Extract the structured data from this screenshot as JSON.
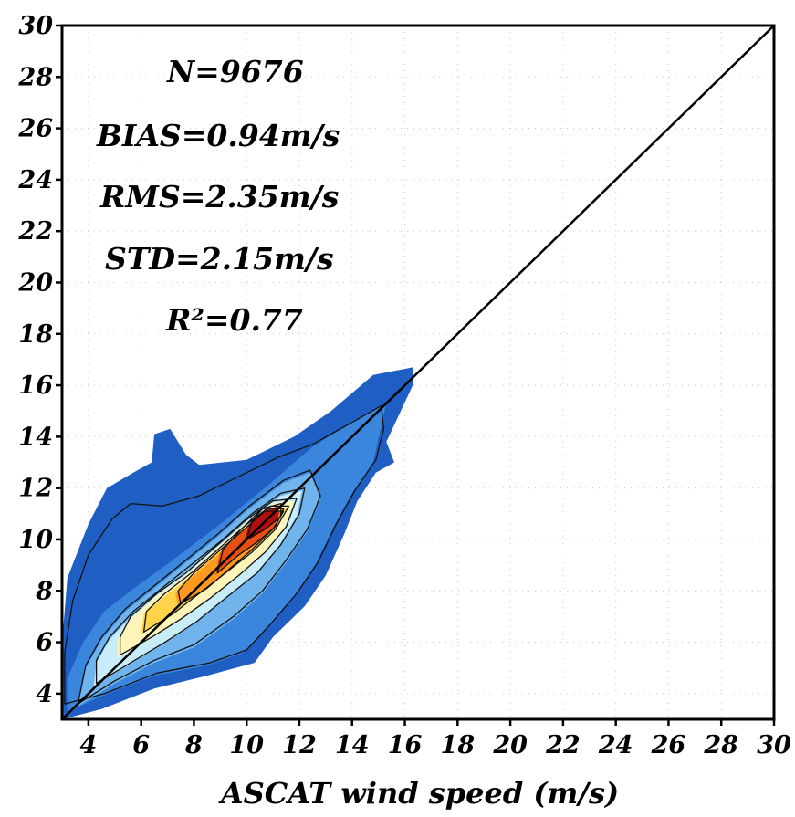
{
  "chart_data": {
    "type": "heatmap",
    "subtype": "density-scatter (filled contours)",
    "title": "",
    "xlabel": "ASCAT wind speed (m/s)",
    "ylabel": "",
    "xlim": [
      3,
      30
    ],
    "ylim": [
      3,
      30
    ],
    "x_ticks": [
      "4",
      "6",
      "8",
      "10",
      "12",
      "14",
      "16",
      "18",
      "20",
      "22",
      "24",
      "26",
      "28",
      "30"
    ],
    "y_ticks": [
      "4",
      "6",
      "8",
      "10",
      "12",
      "14",
      "16",
      "18",
      "20",
      "22",
      "24",
      "26",
      "28",
      "30"
    ],
    "grid": true,
    "reference_line": {
      "type": "1:1",
      "from": [
        3,
        3
      ],
      "to": [
        30,
        30
      ]
    },
    "stats": {
      "n": "N=9676",
      "bias": "BIAS=0.94m/s",
      "rms": "RMS=2.35m/s",
      "std": "STD=2.15m/s",
      "r2": "R²=0.77"
    },
    "colormap": [
      "#1f5fc4",
      "#3a86dc",
      "#6fb4ec",
      "#c9ecf9",
      "#fff5b8",
      "#ffd34a",
      "#ff9a1f",
      "#e84f12",
      "#b30f0f"
    ],
    "density_levels": [
      {
        "level": 0,
        "polygon": [
          [
            3.0,
            3.0
          ],
          [
            4.5,
            3.4
          ],
          [
            6.5,
            4.2
          ],
          [
            8.5,
            4.7
          ],
          [
            10.3,
            5.2
          ],
          [
            11.0,
            6.2
          ],
          [
            12.2,
            7.4
          ],
          [
            13.0,
            8.6
          ],
          [
            13.7,
            10.2
          ],
          [
            14.2,
            11.5
          ],
          [
            14.9,
            12.6
          ],
          [
            15.6,
            13.0
          ],
          [
            15.3,
            13.8
          ],
          [
            15.8,
            14.9
          ],
          [
            16.3,
            16.0
          ],
          [
            16.3,
            16.7
          ],
          [
            14.8,
            16.4
          ],
          [
            13.2,
            15.0
          ],
          [
            11.8,
            14.0
          ],
          [
            10.0,
            13.1
          ],
          [
            8.2,
            12.9
          ],
          [
            7.7,
            13.3
          ],
          [
            7.1,
            14.3
          ],
          [
            6.5,
            14.1
          ],
          [
            6.4,
            13.0
          ],
          [
            5.7,
            12.6
          ],
          [
            4.7,
            12.0
          ],
          [
            4.0,
            10.6
          ],
          [
            3.2,
            8.5
          ],
          [
            3.0,
            6.0
          ]
        ]
      },
      {
        "level": 1,
        "polygon": [
          [
            3.2,
            3.3
          ],
          [
            4.5,
            3.9
          ],
          [
            6.5,
            4.7
          ],
          [
            8.5,
            5.1
          ],
          [
            9.9,
            5.6
          ],
          [
            10.8,
            6.6
          ],
          [
            11.8,
            7.8
          ],
          [
            12.6,
            9.0
          ],
          [
            13.3,
            10.5
          ],
          [
            14.0,
            11.8
          ],
          [
            14.8,
            13.0
          ],
          [
            15.3,
            15.3
          ],
          [
            14.0,
            14.6
          ],
          [
            12.5,
            13.6
          ],
          [
            10.8,
            12.1
          ],
          [
            9.0,
            10.6
          ],
          [
            7.2,
            9.2
          ],
          [
            5.6,
            8.0
          ],
          [
            4.6,
            7.2
          ],
          [
            3.8,
            6.0
          ],
          [
            3.2,
            4.6
          ]
        ]
      },
      {
        "level": 2,
        "polygon": [
          [
            3.6,
            3.5
          ],
          [
            5.0,
            4.4
          ],
          [
            6.5,
            5.2
          ],
          [
            8.0,
            5.8
          ],
          [
            9.5,
            6.9
          ],
          [
            10.6,
            7.9
          ],
          [
            11.5,
            9.1
          ],
          [
            12.3,
            10.3
          ],
          [
            12.8,
            11.6
          ],
          [
            12.4,
            12.6
          ],
          [
            11.4,
            12.2
          ],
          [
            10.1,
            11.2
          ],
          [
            8.9,
            10.1
          ],
          [
            7.7,
            9.1
          ],
          [
            6.5,
            8.1
          ],
          [
            5.4,
            7.2
          ],
          [
            4.5,
            6.1
          ],
          [
            3.9,
            5.0
          ]
        ]
      },
      {
        "level": 3,
        "polygon": [
          [
            4.2,
            4.3
          ],
          [
            5.5,
            5.1
          ],
          [
            6.8,
            5.9
          ],
          [
            8.0,
            6.7
          ],
          [
            9.2,
            7.7
          ],
          [
            10.3,
            8.6
          ],
          [
            11.2,
            9.7
          ],
          [
            11.9,
            10.9
          ],
          [
            12.1,
            11.9
          ],
          [
            11.3,
            11.7
          ],
          [
            10.2,
            10.9
          ],
          [
            9.1,
            9.9
          ],
          [
            8.0,
            9.0
          ],
          [
            6.9,
            8.1
          ],
          [
            5.7,
            7.1
          ],
          [
            4.8,
            6.1
          ],
          [
            4.3,
            5.2
          ]
        ]
      },
      {
        "level": 4,
        "polygon": [
          [
            5.1,
            5.4
          ],
          [
            6.3,
            6.1
          ],
          [
            7.4,
            6.8
          ],
          [
            8.5,
            7.6
          ],
          [
            9.6,
            8.5
          ],
          [
            10.6,
            9.4
          ],
          [
            11.4,
            10.4
          ],
          [
            11.8,
            11.5
          ],
          [
            11.0,
            11.4
          ],
          [
            9.9,
            10.6
          ],
          [
            8.8,
            9.6
          ],
          [
            7.7,
            8.6
          ],
          [
            6.6,
            7.8
          ],
          [
            5.6,
            6.9
          ],
          [
            5.1,
            6.1
          ]
        ]
      },
      {
        "level": 5,
        "polygon": [
          [
            6.0,
            6.3
          ],
          [
            7.1,
            7.0
          ],
          [
            8.1,
            7.8
          ],
          [
            9.1,
            8.6
          ],
          [
            10.1,
            9.4
          ],
          [
            11.0,
            10.3
          ],
          [
            11.5,
            11.2
          ],
          [
            10.9,
            11.2
          ],
          [
            9.9,
            10.4
          ],
          [
            8.9,
            9.5
          ],
          [
            7.9,
            8.6
          ],
          [
            6.9,
            7.8
          ],
          [
            6.1,
            7.1
          ]
        ]
      },
      {
        "level": 6,
        "polygon": [
          [
            7.4,
            7.4
          ],
          [
            8.4,
            8.0
          ],
          [
            9.3,
            8.8
          ],
          [
            10.1,
            9.5
          ],
          [
            10.9,
            10.3
          ],
          [
            11.3,
            11.0
          ],
          [
            10.7,
            11.0
          ],
          [
            9.8,
            10.2
          ],
          [
            8.9,
            9.4
          ],
          [
            8.0,
            8.6
          ],
          [
            7.3,
            7.9
          ]
        ]
      },
      {
        "level": 7,
        "polygon": [
          [
            8.8,
            8.6
          ],
          [
            9.6,
            9.3
          ],
          [
            10.3,
            9.8
          ],
          [
            11.0,
            10.4
          ],
          [
            11.3,
            11.1
          ],
          [
            10.6,
            11.1
          ],
          [
            9.8,
            10.3
          ],
          [
            9.0,
            9.5
          ]
        ]
      },
      {
        "level": 8,
        "polygon": [
          [
            9.9,
            9.9
          ],
          [
            10.6,
            10.3
          ],
          [
            11.2,
            10.8
          ],
          [
            11.2,
            11.3
          ],
          [
            10.6,
            11.1
          ],
          [
            10.1,
            10.6
          ]
        ]
      }
    ],
    "contour_lines": [
      [
        [
          3.1,
          3.6
        ],
        [
          4.6,
          4.0
        ],
        [
          6.6,
          4.8
        ],
        [
          8.6,
          5.2
        ],
        [
          10.0,
          5.7
        ],
        [
          10.9,
          6.7
        ],
        [
          11.9,
          7.9
        ],
        [
          12.7,
          9.1
        ],
        [
          13.4,
          10.6
        ],
        [
          14.1,
          11.9
        ],
        [
          14.9,
          13.1
        ],
        [
          15.2,
          14.3
        ],
        [
          15.1,
          15.2
        ],
        [
          13.9,
          14.5
        ],
        [
          12.5,
          13.7
        ],
        [
          11.2,
          13.2
        ],
        [
          9.8,
          12.5
        ],
        [
          8.2,
          11.7
        ],
        [
          6.8,
          11.3
        ],
        [
          5.6,
          11.4
        ],
        [
          4.9,
          10.8
        ],
        [
          4.0,
          9.4
        ],
        [
          3.4,
          7.6
        ],
        [
          3.1,
          5.6
        ]
      ],
      [
        [
          3.6,
          3.6
        ],
        [
          5.0,
          4.5
        ],
        [
          6.5,
          5.3
        ],
        [
          8.0,
          5.9
        ],
        [
          9.5,
          7.0
        ],
        [
          10.6,
          8.0
        ],
        [
          11.5,
          9.2
        ],
        [
          12.3,
          10.4
        ],
        [
          12.8,
          11.7
        ],
        [
          12.4,
          12.7
        ],
        [
          11.4,
          12.3
        ],
        [
          10.1,
          11.3
        ],
        [
          8.9,
          10.2
        ],
        [
          7.7,
          9.2
        ],
        [
          6.5,
          8.2
        ],
        [
          5.4,
          7.3
        ],
        [
          4.5,
          6.2
        ],
        [
          3.9,
          5.1
        ]
      ],
      [
        [
          4.3,
          4.4
        ],
        [
          5.6,
          5.2
        ],
        [
          6.9,
          6.0
        ],
        [
          8.1,
          6.8
        ],
        [
          9.3,
          7.8
        ],
        [
          10.4,
          8.7
        ],
        [
          11.3,
          9.8
        ],
        [
          12.0,
          11.0
        ],
        [
          12.2,
          12.0
        ],
        [
          11.3,
          11.8
        ],
        [
          10.2,
          11.0
        ],
        [
          9.1,
          10.0
        ],
        [
          8.0,
          9.1
        ],
        [
          6.9,
          8.2
        ],
        [
          5.7,
          7.2
        ],
        [
          4.8,
          6.2
        ],
        [
          4.3,
          5.3
        ]
      ],
      [
        [
          5.2,
          5.5
        ],
        [
          6.4,
          6.2
        ],
        [
          7.5,
          6.9
        ],
        [
          8.6,
          7.7
        ],
        [
          9.7,
          8.6
        ],
        [
          10.7,
          9.5
        ],
        [
          11.5,
          10.5
        ],
        [
          11.9,
          11.6
        ],
        [
          11.0,
          11.5
        ],
        [
          9.9,
          10.7
        ],
        [
          8.8,
          9.7
        ],
        [
          7.7,
          8.7
        ],
        [
          6.6,
          7.9
        ],
        [
          5.6,
          7.0
        ],
        [
          5.2,
          6.2
        ]
      ],
      [
        [
          6.1,
          6.4
        ],
        [
          7.2,
          7.1
        ],
        [
          8.2,
          7.9
        ],
        [
          9.2,
          8.7
        ],
        [
          10.2,
          9.5
        ],
        [
          11.1,
          10.4
        ],
        [
          11.6,
          11.3
        ],
        [
          10.9,
          11.3
        ],
        [
          9.9,
          10.5
        ],
        [
          8.9,
          9.6
        ],
        [
          7.9,
          8.7
        ],
        [
          6.9,
          7.9
        ],
        [
          6.2,
          7.2
        ]
      ],
      [
        [
          7.5,
          7.5
        ],
        [
          8.5,
          8.1
        ],
        [
          9.4,
          8.9
        ],
        [
          10.2,
          9.6
        ],
        [
          11.0,
          10.4
        ],
        [
          11.4,
          11.1
        ],
        [
          10.7,
          11.1
        ],
        [
          9.8,
          10.3
        ],
        [
          8.9,
          9.5
        ],
        [
          8.0,
          8.7
        ],
        [
          7.4,
          8.0
        ]
      ],
      [
        [
          8.9,
          8.7
        ],
        [
          9.7,
          9.4
        ],
        [
          10.4,
          9.9
        ],
        [
          11.1,
          10.5
        ],
        [
          11.4,
          11.2
        ],
        [
          10.6,
          11.2
        ],
        [
          9.8,
          10.4
        ],
        [
          9.1,
          9.6
        ]
      ],
      [
        [
          10.0,
          10.0
        ],
        [
          10.7,
          10.4
        ],
        [
          11.3,
          10.9
        ],
        [
          11.3,
          11.4
        ],
        [
          10.6,
          11.2
        ],
        [
          10.2,
          10.7
        ]
      ]
    ]
  }
}
